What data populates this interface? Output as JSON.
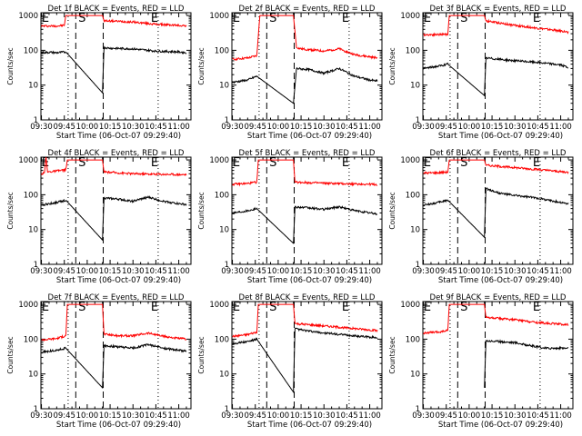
{
  "chart_data": [
    {
      "type": "line",
      "title": "Det 1f BLACK = Events, RED = LLD",
      "xlabel": "Start Time (06-Oct-07 09:29:40)",
      "ylabel": "Counts/sec",
      "yscale": "log",
      "ylim": [
        1,
        1000
      ],
      "x_ticks": [
        "09:30",
        "09:45",
        "10:00",
        "10:15",
        "10:30",
        "10:45",
        "11:00"
      ],
      "y_ticks": [
        "1",
        "10",
        "100",
        "1000"
      ],
      "markers": [
        "E",
        "S",
        "E"
      ],
      "series": [
        {
          "color": "#ff0000",
          "points": [
            [
              "09:30",
              500
            ],
            [
              "09:35",
              500
            ],
            [
              "09:40",
              500
            ],
            [
              "09:45",
              520
            ],
            [
              "09:46",
              1000
            ],
            [
              "10:10",
              1000
            ],
            [
              "10:11",
              700
            ],
            [
              "10:15",
              700
            ],
            [
              "10:30",
              650
            ],
            [
              "10:45",
              560
            ],
            [
              "11:00",
              520
            ],
            [
              "11:05",
              510
            ]
          ]
        },
        {
          "color": "#000000",
          "points": [
            [
              "09:30",
              85
            ],
            [
              "09:35",
              88
            ],
            [
              "09:40",
              85
            ],
            [
              "09:46",
              90
            ],
            [
              "10:10",
              6
            ],
            [
              "10:11",
              120
            ],
            [
              "10:15",
              115
            ],
            [
              "10:30",
              110
            ],
            [
              "10:45",
              95
            ],
            [
              "11:00",
              90
            ],
            [
              "11:05",
              85
            ]
          ]
        }
      ]
    },
    {
      "type": "line",
      "title": "Det 2f BLACK = Events, RED = LLD",
      "xlabel": "Start Time (06-Oct-07 09:29:40)",
      "ylabel": "Counts/sec",
      "yscale": "log",
      "ylim": [
        1,
        1000
      ],
      "x_ticks": [
        "09:30",
        "09:45",
        "10:00",
        "10:15",
        "10:30",
        "10:45",
        "11:00"
      ],
      "y_ticks": [
        "1",
        "10",
        "100",
        "1000"
      ],
      "markers": [
        "E",
        "S",
        "E"
      ],
      "series": [
        {
          "color": "#ff0000",
          "points": [
            [
              "09:30",
              55
            ],
            [
              "09:40",
              60
            ],
            [
              "09:46",
              70
            ],
            [
              "09:48",
              1000
            ],
            [
              "10:10",
              1000
            ],
            [
              "10:12",
              120
            ],
            [
              "10:15",
              110
            ],
            [
              "10:30",
              95
            ],
            [
              "10:40",
              110
            ],
            [
              "10:50",
              75
            ],
            [
              "11:00",
              65
            ],
            [
              "11:05",
              60
            ]
          ]
        },
        {
          "color": "#000000",
          "points": [
            [
              "09:30",
              12
            ],
            [
              "09:40",
              14
            ],
            [
              "09:46",
              18
            ],
            [
              "10:10",
              3
            ],
            [
              "10:12",
              30
            ],
            [
              "10:20",
              28
            ],
            [
              "10:30",
              22
            ],
            [
              "10:40",
              30
            ],
            [
              "10:50",
              18
            ],
            [
              "11:00",
              14
            ],
            [
              "11:05",
              13
            ]
          ]
        }
      ]
    },
    {
      "type": "line",
      "title": "Det 3f BLACK = Events, RED = LLD",
      "xlabel": "Start Time (06-Oct-07 09:29:40)",
      "ylabel": "Counts/sec",
      "yscale": "log",
      "ylim": [
        1,
        1000
      ],
      "x_ticks": [
        "09:30",
        "09:45",
        "10:00",
        "10:15",
        "10:30",
        "10:45",
        "11:00"
      ],
      "y_ticks": [
        "1",
        "10",
        "100",
        "1000"
      ],
      "markers": [
        "E",
        "S",
        "E"
      ],
      "series": [
        {
          "color": "#ff0000",
          "points": [
            [
              "09:30",
              280
            ],
            [
              "09:40",
              285
            ],
            [
              "09:46",
              290
            ],
            [
              "09:47",
              1000
            ],
            [
              "10:10",
              1000
            ],
            [
              "10:11",
              700
            ],
            [
              "10:30",
              520
            ],
            [
              "10:45",
              430
            ],
            [
              "11:00",
              360
            ],
            [
              "11:05",
              330
            ]
          ]
        },
        {
          "color": "#000000",
          "points": [
            [
              "09:30",
              30
            ],
            [
              "09:40",
              35
            ],
            [
              "09:46",
              40
            ],
            [
              "10:10",
              5
            ],
            [
              "10:11",
              60
            ],
            [
              "10:30",
              50
            ],
            [
              "10:45",
              45
            ],
            [
              "11:00",
              38
            ],
            [
              "11:05",
              32
            ]
          ]
        }
      ]
    },
    {
      "type": "line",
      "title": "Det 4f BLACK = Events, RED = LLD",
      "xlabel": "Start Time (06-Oct-07 09:29:40)",
      "ylabel": "Counts/sec",
      "yscale": "log",
      "ylim": [
        1,
        1000
      ],
      "x_ticks": [
        "09:30",
        "09:45",
        "10:00",
        "10:15",
        "10:30",
        "10:45",
        "11:00"
      ],
      "y_ticks": [
        "1",
        "10",
        "100",
        "1000"
      ],
      "markers": [
        "E",
        "S",
        "E"
      ],
      "series": [
        {
          "color": "#ff0000",
          "points": [
            [
              "09:30",
              400
            ],
            [
              "09:32",
              420
            ],
            [
              "09:33",
              1200
            ],
            [
              "09:34",
              450
            ],
            [
              "09:40",
              480
            ],
            [
              "09:46",
              520
            ],
            [
              "09:47",
              1000
            ],
            [
              "10:10",
              1000
            ],
            [
              "10:11",
              450
            ],
            [
              "10:30",
              400
            ],
            [
              "10:45",
              390
            ],
            [
              "11:00",
              380
            ],
            [
              "11:05",
              380
            ]
          ]
        },
        {
          "color": "#000000",
          "points": [
            [
              "09:30",
              50
            ],
            [
              "09:35",
              55
            ],
            [
              "09:40",
              60
            ],
            [
              "09:46",
              70
            ],
            [
              "10:10",
              5
            ],
            [
              "10:11",
              80
            ],
            [
              "10:20",
              75
            ],
            [
              "10:30",
              65
            ],
            [
              "10:40",
              85
            ],
            [
              "10:50",
              65
            ],
            [
              "11:00",
              55
            ],
            [
              "11:05",
              52
            ]
          ]
        }
      ]
    },
    {
      "type": "line",
      "title": "Det 5f BLACK = Events, RED = LLD",
      "xlabel": "Start Time (06-Oct-07 09:29:40)",
      "ylabel": "Counts/sec",
      "yscale": "log",
      "ylim": [
        1,
        1000
      ],
      "x_ticks": [
        "09:30",
        "09:45",
        "10:00",
        "10:15",
        "10:30",
        "10:45",
        "11:00"
      ],
      "y_ticks": [
        "1",
        "10",
        "100",
        "1000"
      ],
      "markers": [
        "E",
        "S",
        "E"
      ],
      "series": [
        {
          "color": "#ff0000",
          "points": [
            [
              "09:30",
              200
            ],
            [
              "09:40",
              210
            ],
            [
              "09:46",
              230
            ],
            [
              "09:47",
              1000
            ],
            [
              "10:10",
              1000
            ],
            [
              "10:11",
              230
            ],
            [
              "10:30",
              215
            ],
            [
              "10:45",
              205
            ],
            [
              "11:00",
              200
            ],
            [
              "11:05",
              195
            ]
          ]
        },
        {
          "color": "#000000",
          "points": [
            [
              "09:30",
              30
            ],
            [
              "09:40",
              35
            ],
            [
              "09:46",
              40
            ],
            [
              "10:10",
              4
            ],
            [
              "10:11",
              45
            ],
            [
              "10:30",
              38
            ],
            [
              "10:40",
              45
            ],
            [
              "10:50",
              35
            ],
            [
              "11:00",
              30
            ],
            [
              "11:05",
              28
            ]
          ]
        }
      ]
    },
    {
      "type": "line",
      "title": "Det 6f BLACK = Events, RED = LLD",
      "xlabel": "Start Time (06-Oct-07 09:29:40)",
      "ylabel": "Counts/sec",
      "yscale": "log",
      "ylim": [
        1,
        1000
      ],
      "x_ticks": [
        "09:30",
        "09:45",
        "10:00",
        "10:15",
        "10:30",
        "10:45",
        "11:00"
      ],
      "y_ticks": [
        "1",
        "10",
        "100",
        "1000"
      ],
      "markers": [
        "E",
        "S",
        "E"
      ],
      "series": [
        {
          "color": "#ff0000",
          "points": [
            [
              "09:30",
              420
            ],
            [
              "09:40",
              430
            ],
            [
              "09:46",
              450
            ],
            [
              "09:47",
              1000
            ],
            [
              "10:10",
              1000
            ],
            [
              "10:11",
              700
            ],
            [
              "10:30",
              600
            ],
            [
              "10:45",
              530
            ],
            [
              "11:00",
              460
            ],
            [
              "11:05",
              440
            ]
          ]
        },
        {
          "color": "#000000",
          "points": [
            [
              "09:30",
              50
            ],
            [
              "09:40",
              60
            ],
            [
              "09:46",
              70
            ],
            [
              "10:10",
              6
            ],
            [
              "10:11",
              150
            ],
            [
              "10:20",
              110
            ],
            [
              "10:30",
              95
            ],
            [
              "10:45",
              80
            ],
            [
              "11:00",
              60
            ],
            [
              "11:05",
              55
            ]
          ]
        }
      ]
    },
    {
      "type": "line",
      "title": "Det 7f BLACK = Events, RED = LLD",
      "xlabel": "Start Time (06-Oct-07 09:29:40)",
      "ylabel": "Counts/sec",
      "yscale": "log",
      "ylim": [
        1,
        1000
      ],
      "x_ticks": [
        "09:30",
        "09:45",
        "10:00",
        "10:15",
        "10:30",
        "10:45",
        "11:00"
      ],
      "y_ticks": [
        "1",
        "10",
        "100",
        "1000"
      ],
      "markers": [
        "E",
        "S",
        "E"
      ],
      "series": [
        {
          "color": "#ff0000",
          "points": [
            [
              "09:30",
              95
            ],
            [
              "09:40",
              105
            ],
            [
              "09:46",
              125
            ],
            [
              "09:47",
              1000
            ],
            [
              "10:10",
              1000
            ],
            [
              "10:11",
              140
            ],
            [
              "10:20",
              125
            ],
            [
              "10:30",
              125
            ],
            [
              "10:40",
              150
            ],
            [
              "10:50",
              120
            ],
            [
              "11:00",
              105
            ],
            [
              "11:05",
              100
            ]
          ]
        },
        {
          "color": "#000000",
          "points": [
            [
              "09:30",
              42
            ],
            [
              "09:40",
              48
            ],
            [
              "09:46",
              55
            ],
            [
              "10:10",
              4
            ],
            [
              "10:11",
              65
            ],
            [
              "10:20",
              60
            ],
            [
              "10:30",
              55
            ],
            [
              "10:40",
              70
            ],
            [
              "10:50",
              55
            ],
            [
              "11:00",
              48
            ],
            [
              "11:05",
              45
            ]
          ]
        }
      ]
    },
    {
      "type": "line",
      "title": "Det 8f BLACK = Events, RED = LLD",
      "xlabel": "Start Time (06-Oct-07 09:29:40)",
      "ylabel": "Counts/sec",
      "yscale": "log",
      "ylim": [
        1,
        1000
      ],
      "x_ticks": [
        "09:30",
        "09:45",
        "10:00",
        "10:15",
        "10:30",
        "10:45",
        "11:00"
      ],
      "y_ticks": [
        "1",
        "10",
        "100",
        "1000"
      ],
      "markers": [
        "E",
        "S",
        "E"
      ],
      "series": [
        {
          "color": "#ff0000",
          "points": [
            [
              "09:30",
              120
            ],
            [
              "09:40",
              135
            ],
            [
              "09:46",
              160
            ],
            [
              "09:47",
              1000
            ],
            [
              "10:10",
              1000
            ],
            [
              "10:11",
              280
            ],
            [
              "10:30",
              240
            ],
            [
              "10:45",
              210
            ],
            [
              "11:00",
              185
            ],
            [
              "11:05",
              175
            ]
          ]
        },
        {
          "color": "#000000",
          "points": [
            [
              "09:30",
              75
            ],
            [
              "09:40",
              85
            ],
            [
              "09:46",
              100
            ],
            [
              "10:10",
              3
            ],
            [
              "10:11",
              200
            ],
            [
              "10:20",
              170
            ],
            [
              "10:30",
              150
            ],
            [
              "10:45",
              130
            ],
            [
              "11:00",
              115
            ],
            [
              "11:05",
              110
            ]
          ]
        }
      ]
    },
    {
      "type": "line",
      "title": "Det 9f BLACK = Events, RED = LLD",
      "xlabel": "Start Time (06-Oct-07 09:29:40)",
      "ylabel": "Counts/sec",
      "yscale": "log",
      "ylim": [
        1,
        1000
      ],
      "x_ticks": [
        "09:30",
        "09:45",
        "10:00",
        "10:15",
        "10:30",
        "10:45",
        "11:00"
      ],
      "y_ticks": [
        "1",
        "10",
        "100",
        "1000"
      ],
      "markers": [
        "E",
        "S",
        "E"
      ],
      "series": [
        {
          "color": "#ff0000",
          "points": [
            [
              "09:30",
              150
            ],
            [
              "09:40",
              160
            ],
            [
              "09:46",
              180
            ],
            [
              "09:47",
              1000
            ],
            [
              "10:10",
              1000
            ],
            [
              "10:11",
              420
            ],
            [
              "10:30",
              360
            ],
            [
              "10:45",
              300
            ],
            [
              "11:00",
              270
            ],
            [
              "11:05",
              260
            ]
          ]
        },
        {
          "color": "#000000",
          "points": [
            [
              "10:10",
              4
            ],
            [
              "10:11",
              90
            ],
            [
              "10:20",
              85
            ],
            [
              "10:30",
              80
            ],
            [
              "10:40",
              65
            ],
            [
              "10:50",
              55
            ],
            [
              "11:00",
              55
            ],
            [
              "11:05",
              55
            ]
          ]
        }
      ]
    }
  ]
}
